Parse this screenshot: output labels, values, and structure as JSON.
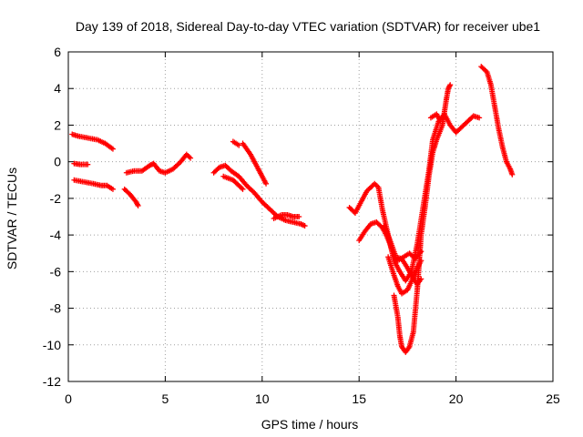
{
  "chart_data": {
    "type": "scatter",
    "title": "Day 139 of 2018, Sidereal Day-to-day VTEC variation (SDTVAR) for receiver ube1",
    "xlabel": "GPS time / hours",
    "ylabel": "SDTVAR / TECUs",
    "xlim": [
      0,
      25
    ],
    "ylim": [
      -12,
      6
    ],
    "xticks": [
      "0",
      "5",
      "10",
      "15",
      "20",
      "25"
    ],
    "yticks": [
      "-12",
      "-10",
      "-8",
      "-6",
      "-4",
      "-2",
      "0",
      "2",
      "4",
      "6"
    ],
    "grid": true,
    "marker": "+",
    "color": "#ff0000",
    "series": [
      {
        "points": [
          [
            0.2,
            1.5
          ],
          [
            0.5,
            1.4
          ],
          [
            1.0,
            1.3
          ],
          [
            1.5,
            1.2
          ],
          [
            1.9,
            1.0
          ],
          [
            2.3,
            0.7
          ]
        ]
      },
      {
        "points": [
          [
            0.3,
            -0.1
          ],
          [
            0.6,
            -0.15
          ],
          [
            1.0,
            -0.15
          ]
        ]
      },
      {
        "points": [
          [
            0.3,
            -1.0
          ],
          [
            0.8,
            -1.1
          ],
          [
            1.3,
            -1.2
          ],
          [
            1.7,
            -1.3
          ],
          [
            2.0,
            -1.3
          ],
          [
            2.3,
            -1.5
          ]
        ]
      },
      {
        "points": [
          [
            2.9,
            -1.5
          ],
          [
            3.2,
            -1.8
          ],
          [
            3.5,
            -2.2
          ],
          [
            3.6,
            -2.4
          ]
        ]
      },
      {
        "points": [
          [
            3.0,
            -0.6
          ],
          [
            3.4,
            -0.5
          ],
          [
            3.8,
            -0.5
          ],
          [
            4.2,
            -0.2
          ],
          [
            4.4,
            -0.1
          ],
          [
            4.7,
            -0.5
          ],
          [
            5.0,
            -0.6
          ],
          [
            5.4,
            -0.4
          ],
          [
            5.8,
            0.0
          ],
          [
            6.1,
            0.4
          ],
          [
            6.3,
            0.2
          ]
        ]
      },
      {
        "points": [
          [
            7.5,
            -0.6
          ],
          [
            7.8,
            -0.3
          ],
          [
            8.1,
            -0.2
          ],
          [
            8.4,
            -0.5
          ],
          [
            8.8,
            -0.8
          ],
          [
            9.2,
            -1.3
          ],
          [
            9.6,
            -1.7
          ],
          [
            10.0,
            -2.2
          ],
          [
            10.4,
            -2.6
          ],
          [
            10.8,
            -3.0
          ],
          [
            11.2,
            -3.2
          ],
          [
            11.6,
            -3.3
          ],
          [
            12.0,
            -3.4
          ],
          [
            12.2,
            -3.5
          ]
        ]
      },
      {
        "points": [
          [
            8.0,
            -0.8
          ],
          [
            8.5,
            -1.0
          ],
          [
            9.0,
            -1.5
          ]
        ]
      },
      {
        "points": [
          [
            8.5,
            1.1
          ],
          [
            8.8,
            0.9
          ]
        ]
      },
      {
        "points": [
          [
            9.0,
            1.0
          ],
          [
            9.4,
            0.4
          ],
          [
            9.8,
            -0.4
          ],
          [
            10.2,
            -1.2
          ]
        ]
      },
      {
        "points": [
          [
            10.6,
            -3.1
          ],
          [
            11.0,
            -2.9
          ],
          [
            11.3,
            -2.9
          ],
          [
            11.6,
            -3.0
          ],
          [
            11.9,
            -3.0
          ]
        ]
      },
      {
        "points": [
          [
            14.5,
            -2.5
          ],
          [
            14.8,
            -2.8
          ],
          [
            15.1,
            -2.2
          ],
          [
            15.4,
            -1.6
          ],
          [
            15.8,
            -1.2
          ],
          [
            16.0,
            -1.4
          ],
          [
            16.2,
            -2.6
          ],
          [
            16.5,
            -4.0
          ],
          [
            16.8,
            -5.4
          ],
          [
            17.1,
            -6.0
          ],
          [
            17.4,
            -6.5
          ],
          [
            17.7,
            -6.0
          ],
          [
            18.0,
            -4.5
          ],
          [
            18.3,
            -2.5
          ],
          [
            18.6,
            -0.5
          ],
          [
            18.8,
            1.2
          ],
          [
            19.1,
            2.2
          ],
          [
            19.4,
            2.6
          ],
          [
            19.7,
            2.0
          ],
          [
            20.0,
            1.6
          ],
          [
            20.3,
            1.9
          ],
          [
            20.6,
            2.2
          ],
          [
            20.9,
            2.5
          ],
          [
            21.2,
            2.4
          ]
        ]
      },
      {
        "points": [
          [
            15.0,
            -4.3
          ],
          [
            15.3,
            -3.8
          ],
          [
            15.6,
            -3.4
          ],
          [
            15.9,
            -3.3
          ],
          [
            16.2,
            -3.6
          ],
          [
            16.4,
            -4.0
          ],
          [
            16.6,
            -4.5
          ],
          [
            16.8,
            -5.2
          ],
          [
            17.0,
            -5.4
          ],
          [
            17.3,
            -5.2
          ],
          [
            17.6,
            -5.0
          ],
          [
            17.9,
            -5.3
          ],
          [
            18.2,
            -4.9
          ]
        ]
      },
      {
        "points": [
          [
            16.5,
            -5.2
          ],
          [
            16.8,
            -6.2
          ],
          [
            17.0,
            -6.8
          ],
          [
            17.2,
            -7.2
          ],
          [
            17.5,
            -7.0
          ],
          [
            17.8,
            -6.3
          ],
          [
            18.0,
            -5.8
          ],
          [
            18.2,
            -5.4
          ]
        ]
      },
      {
        "points": [
          [
            16.3,
            -3.5
          ],
          [
            16.6,
            -4.3
          ],
          [
            16.9,
            -5.2
          ],
          [
            17.2,
            -5.3
          ],
          [
            17.5,
            -5.8
          ],
          [
            17.7,
            -6.2
          ],
          [
            18.0,
            -6.7
          ],
          [
            18.2,
            -6.4
          ]
        ]
      },
      {
        "points": [
          [
            16.8,
            -7.3
          ],
          [
            17.0,
            -8.5
          ],
          [
            17.1,
            -9.5
          ],
          [
            17.2,
            -10.1
          ],
          [
            17.4,
            -10.4
          ],
          [
            17.6,
            -10.1
          ],
          [
            17.8,
            -9.3
          ],
          [
            18.0,
            -7.0
          ],
          [
            18.1,
            -5.5
          ],
          [
            18.2,
            -4.0
          ],
          [
            18.4,
            -2.5
          ],
          [
            18.6,
            -0.8
          ],
          [
            18.8,
            0.5
          ],
          [
            19.0,
            1.2
          ],
          [
            19.3,
            2.0
          ],
          [
            19.5,
            3.4
          ],
          [
            19.6,
            4.0
          ],
          [
            19.7,
            4.2
          ]
        ]
      },
      {
        "points": [
          [
            18.7,
            2.4
          ],
          [
            19.0,
            2.6
          ],
          [
            19.2,
            2.2
          ]
        ]
      },
      {
        "points": [
          [
            21.3,
            5.2
          ],
          [
            21.6,
            4.9
          ],
          [
            21.8,
            4.2
          ],
          [
            22.0,
            3.0
          ],
          [
            22.2,
            1.8
          ],
          [
            22.4,
            0.8
          ],
          [
            22.6,
            0.0
          ],
          [
            22.8,
            -0.4
          ],
          [
            22.9,
            -0.7
          ]
        ]
      }
    ]
  }
}
